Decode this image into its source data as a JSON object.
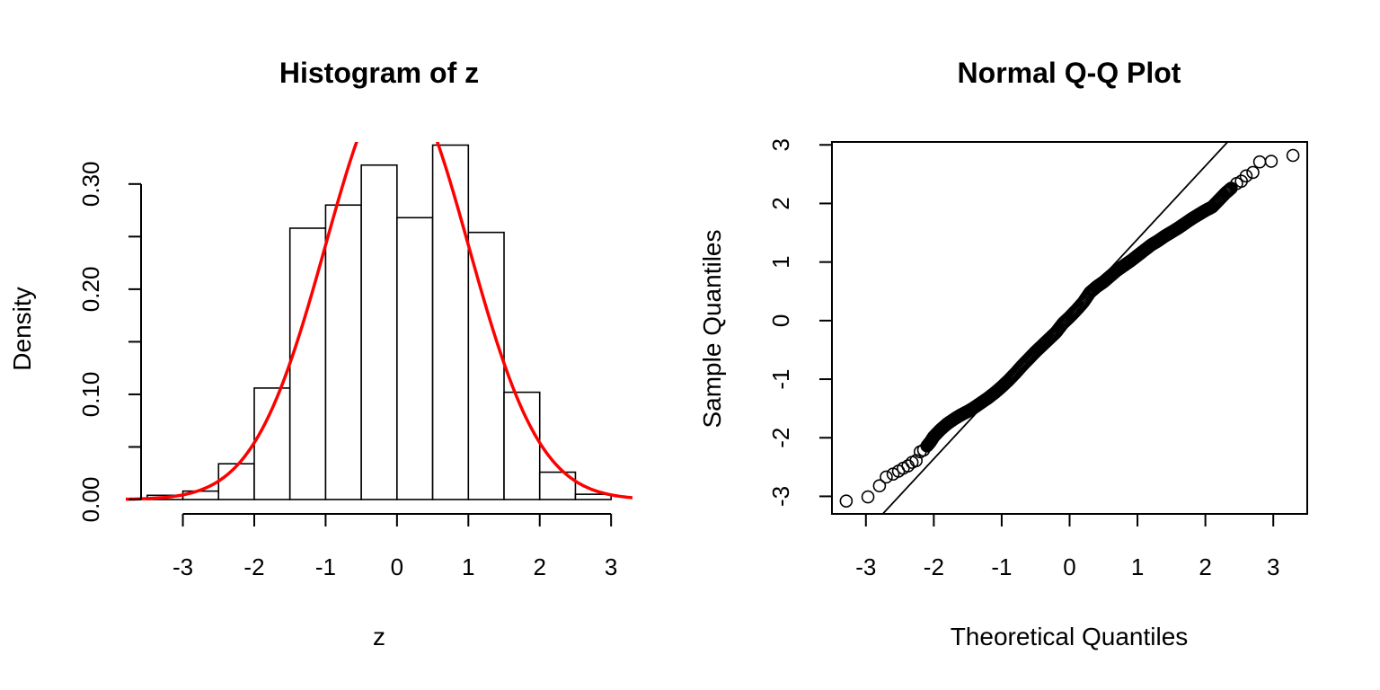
{
  "chart_data": [
    {
      "type": "bar",
      "title": "Histogram of z",
      "xlabel": "z",
      "ylabel": "Density",
      "xlim": [
        -3.8,
        3.3
      ],
      "ylim": [
        0,
        0.34
      ],
      "x_ticks": [
        "-3",
        "-2",
        "-1",
        "0",
        "1",
        "2",
        "3"
      ],
      "y_ticks": [
        "0.00",
        "0.10",
        "0.20",
        "0.30"
      ],
      "bins": [
        {
          "x0": -3.5,
          "x1": -3.0,
          "density": 0.004
        },
        {
          "x0": -3.0,
          "x1": -2.5,
          "density": 0.008
        },
        {
          "x0": -2.5,
          "x1": -2.0,
          "density": 0.034
        },
        {
          "x0": -2.0,
          "x1": -1.5,
          "density": 0.106
        },
        {
          "x0": -1.5,
          "x1": -1.0,
          "density": 0.258
        },
        {
          "x0": -1.0,
          "x1": -0.5,
          "density": 0.28
        },
        {
          "x0": -0.5,
          "x1": 0.0,
          "density": 0.318
        },
        {
          "x0": 0.0,
          "x1": 0.5,
          "density": 0.268
        },
        {
          "x0": 0.5,
          "x1": 1.0,
          "density": 0.337
        },
        {
          "x0": 1.0,
          "x1": 1.5,
          "density": 0.254
        },
        {
          "x0": 1.5,
          "x1": 2.0,
          "density": 0.102
        },
        {
          "x0": 2.0,
          "x1": 2.5,
          "density": 0.026
        },
        {
          "x0": 2.5,
          "x1": 3.0,
          "density": 0.005
        }
      ],
      "density_curve": {
        "color": "#ff0000",
        "mean": 0,
        "sd": 1
      }
    },
    {
      "type": "scatter",
      "title": "Normal Q-Q Plot",
      "xlabel": "Theoretical Quantiles",
      "ylabel": "Sample Quantiles",
      "xlim": [
        -3.5,
        3.5
      ],
      "ylim": [
        -3.3,
        3.05
      ],
      "x_ticks": [
        "-3",
        "-2",
        "-1",
        "0",
        "1",
        "2",
        "3"
      ],
      "y_ticks": [
        "-3",
        "-2",
        "-1",
        "0",
        "1",
        "2",
        "3"
      ],
      "reference_line": {
        "slope": 1.25,
        "intercept": 0.14
      },
      "points": [
        [
          -3.29,
          -3.08
        ],
        [
          -2.97,
          -3.01
        ],
        [
          -2.8,
          -2.82
        ],
        [
          -2.7,
          -2.67
        ],
        [
          -2.6,
          -2.62
        ],
        [
          -2.52,
          -2.57
        ],
        [
          -2.45,
          -2.52
        ],
        [
          -2.38,
          -2.48
        ],
        [
          -2.32,
          -2.42
        ],
        [
          -2.26,
          -2.39
        ],
        [
          -2.2,
          -2.24
        ],
        [
          -2.15,
          -2.21
        ],
        [
          -2.1,
          -2.14
        ],
        [
          -2.05,
          -2.07
        ],
        [
          -2.0,
          -1.98
        ],
        [
          -1.9,
          -1.86
        ],
        [
          -1.8,
          -1.76
        ],
        [
          -1.7,
          -1.68
        ],
        [
          -1.6,
          -1.61
        ],
        [
          -1.5,
          -1.55
        ],
        [
          -1.4,
          -1.48
        ],
        [
          -1.3,
          -1.4
        ],
        [
          -1.2,
          -1.32
        ],
        [
          -1.1,
          -1.23
        ],
        [
          -1.0,
          -1.13
        ],
        [
          -0.9,
          -1.02
        ],
        [
          -0.8,
          -0.9
        ],
        [
          -0.7,
          -0.77
        ],
        [
          -0.6,
          -0.65
        ],
        [
          -0.5,
          -0.53
        ],
        [
          -0.4,
          -0.42
        ],
        [
          -0.3,
          -0.31
        ],
        [
          -0.2,
          -0.2
        ],
        [
          -0.1,
          -0.05
        ],
        [
          0.0,
          0.06
        ],
        [
          0.1,
          0.18
        ],
        [
          0.2,
          0.31
        ],
        [
          0.3,
          0.48
        ],
        [
          0.4,
          0.58
        ],
        [
          0.5,
          0.66
        ],
        [
          0.6,
          0.76
        ],
        [
          0.7,
          0.86
        ],
        [
          0.8,
          0.94
        ],
        [
          0.9,
          1.02
        ],
        [
          1.0,
          1.11
        ],
        [
          1.1,
          1.2
        ],
        [
          1.2,
          1.29
        ],
        [
          1.3,
          1.36
        ],
        [
          1.4,
          1.44
        ],
        [
          1.5,
          1.51
        ],
        [
          1.6,
          1.58
        ],
        [
          1.7,
          1.66
        ],
        [
          1.8,
          1.74
        ],
        [
          1.9,
          1.81
        ],
        [
          2.0,
          1.88
        ],
        [
          2.1,
          1.94
        ],
        [
          2.2,
          2.06
        ],
        [
          2.3,
          2.18
        ],
        [
          2.38,
          2.26
        ],
        [
          2.46,
          2.34
        ],
        [
          2.53,
          2.38
        ],
        [
          2.6,
          2.47
        ],
        [
          2.7,
          2.53
        ],
        [
          2.8,
          2.71
        ],
        [
          2.97,
          2.72
        ],
        [
          3.29,
          2.82
        ]
      ]
    }
  ]
}
